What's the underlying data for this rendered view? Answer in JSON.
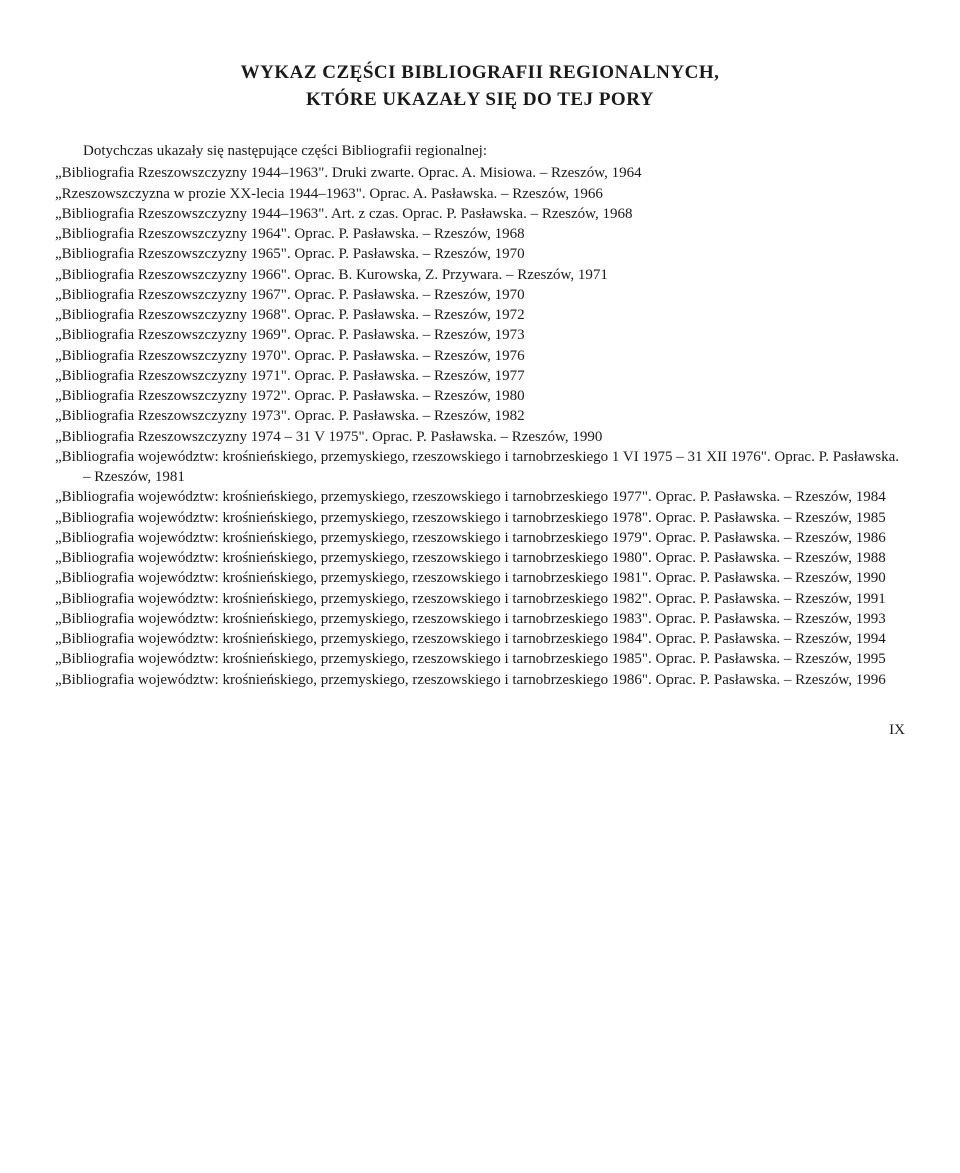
{
  "heading_line1": "WYKAZ CZĘŚCI BIBLIOGRAFII REGIONALNYCH,",
  "heading_line2": "KTÓRE UKAZAŁY SIĘ DO TEJ PORY",
  "intro": "Dotychczas ukazały się następujące części Bibliografii regionalnej:",
  "entries": [
    "„Bibliografia Rzeszowszczyzny 1944–1963\". Druki zwarte. Oprac. A. Misiowa. – Rzeszów, 1964",
    "„Rzeszowszczyzna w prozie XX-lecia 1944–1963\". Oprac. A. Pasławska. – Rzeszów, 1966",
    "„Bibliografia Rzeszowszczyzny 1944–1963\". Art. z czas. Oprac. P. Pasławska. – Rzeszów, 1968",
    "„Bibliografia Rzeszowszczyzny 1964\". Oprac. P. Pasławska. – Rzeszów, 1968",
    "„Bibliografia Rzeszowszczyzny 1965\". Oprac. P. Pasławska. – Rzeszów, 1970",
    "„Bibliografia Rzeszowszczyzny 1966\". Oprac. B. Kurowska, Z. Przywara. – Rzeszów, 1971",
    "„Bibliografia Rzeszowszczyzny 1967\". Oprac. P. Pasławska. – Rzeszów, 1970",
    "„Bibliografia Rzeszowszczyzny 1968\". Oprac. P. Pasławska. – Rzeszów, 1972",
    "„Bibliografia Rzeszowszczyzny 1969\". Oprac. P. Pasławska. – Rzeszów, 1973",
    "„Bibliografia Rzeszowszczyzny 1970\". Oprac. P. Pasławska. – Rzeszów, 1976",
    "„Bibliografia Rzeszowszczyzny 1971\". Oprac. P. Pasławska. – Rzeszów, 1977",
    "„Bibliografia Rzeszowszczyzny 1972\". Oprac. P. Pasławska. – Rzeszów, 1980",
    "„Bibliografia Rzeszowszczyzny 1973\". Oprac. P. Pasławska. – Rzeszów, 1982",
    "„Bibliografia Rzeszowszczyzny 1974 – 31 V 1975\". Oprac. P. Pasławska. – Rzeszów, 1990",
    "„Bibliografia województw: krośnieńskiego, przemyskiego, rzeszowskiego i tarnobrzeskiego 1 VI 1975 – 31 XII 1976\". Oprac. P. Pasławska. – Rzeszów, 1981",
    "„Bibliografia województw: krośnieńskiego, przemyskiego, rzeszowskiego i tarnobrzeskiego 1977\". Oprac. P. Pasławska. – Rzeszów, 1984",
    "„Bibliografia województw: krośnieńskiego, przemyskiego, rzeszowskiego i tarnobrzeskiego 1978\". Oprac. P. Pasławska. – Rzeszów, 1985",
    "„Bibliografia województw: krośnieńskiego, przemyskiego, rzeszowskiego i tarnobrzeskiego 1979\". Oprac. P. Pasławska. – Rzeszów, 1986",
    "„Bibliografia województw: krośnieńskiego, przemyskiego, rzeszowskiego i tarnobrzeskiego 1980\". Oprac. P. Pasławska. – Rzeszów, 1988",
    "„Bibliografia województw: krośnieńskiego, przemyskiego, rzeszowskiego i tarnobrzeskiego 1981\". Oprac. P. Pasławska. – Rzeszów, 1990",
    "„Bibliografia województw: krośnieńskiego, przemyskiego, rzeszowskiego i tarnobrzeskiego 1982\". Oprac. P. Pasławska. – Rzeszów, 1991",
    "„Bibliografia województw: krośnieńskiego, przemyskiego, rzeszowskiego i tarnobrzeskiego 1983\". Oprac. P. Pasławska. – Rzeszów, 1993",
    "„Bibliografia województw: krośnieńskiego, przemyskiego, rzeszowskiego i tarnobrzeskiego 1984\". Oprac. P. Pasławska. – Rzeszów, 1994",
    "„Bibliografia województw: krośnieńskiego, przemyskiego, rzeszowskiego i tarnobrzeskiego 1985\". Oprac. P. Pasławska. – Rzeszów, 1995",
    "„Bibliografia województw: krośnieńskiego, przemyskiego, rzeszowskiego i tarnobrzeskiego 1986\". Oprac. P. Pasławska. – Rzeszów, 1996"
  ],
  "page_number": "IX"
}
